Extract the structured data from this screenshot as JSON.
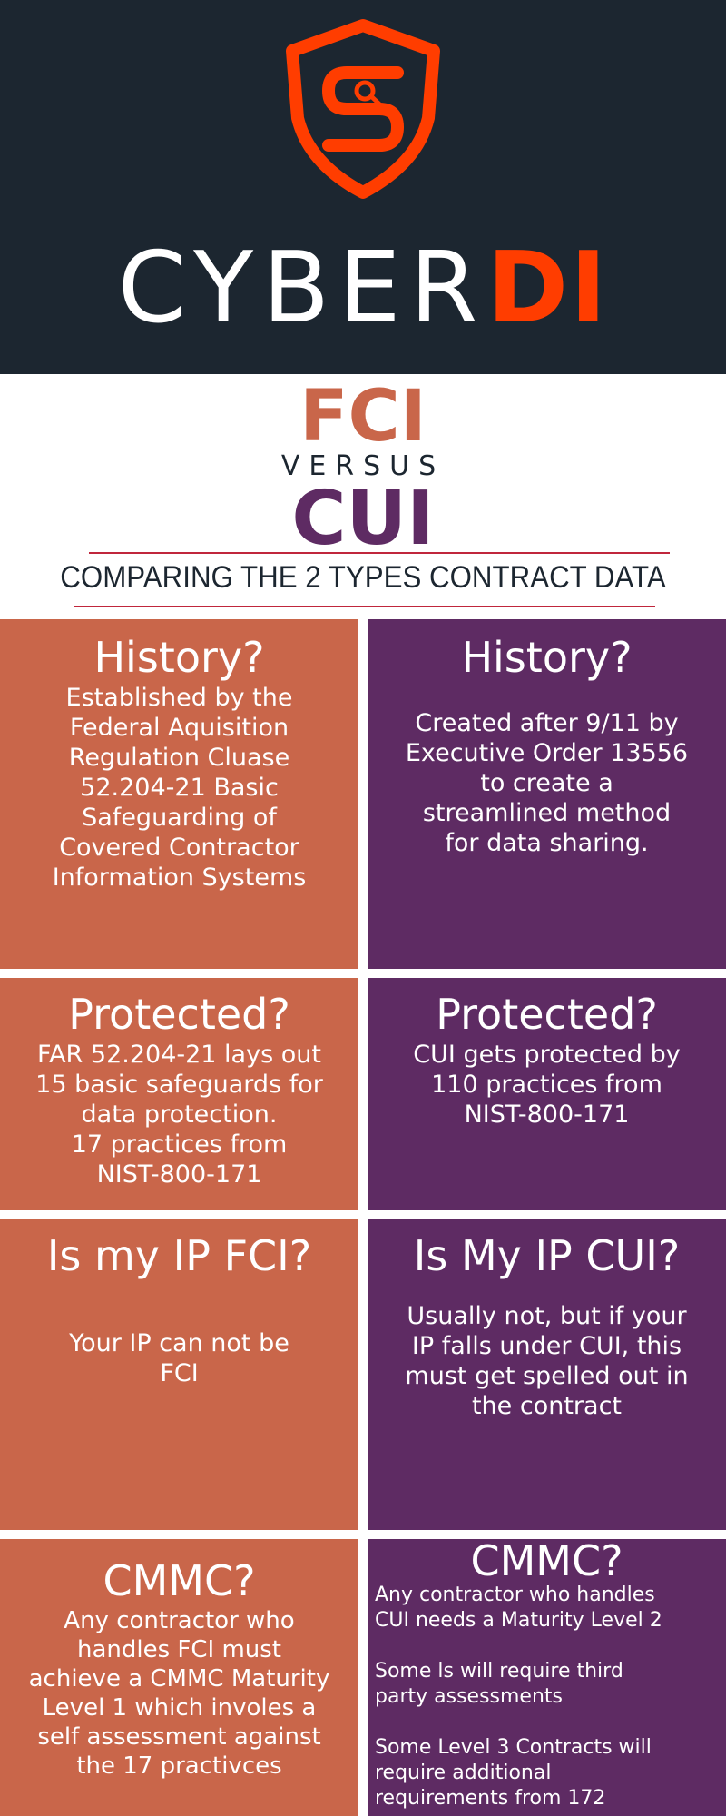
{
  "brand": {
    "light": "CYBER",
    "accent": "DI",
    "logo_icon": "shield-s-circuit-icon",
    "colors": {
      "header_bg": "#1c2630",
      "accent": "#ff3d00"
    }
  },
  "intro": {
    "fci": "FCI",
    "versus": "VERSUS",
    "cui": "CUI",
    "subtitle": "COMPARING THE 2 TYPES CONTRACT DATA"
  },
  "colors": {
    "fci": "#c9664a",
    "cui": "#5e2b63",
    "rule": "#c0263c"
  },
  "rows": [
    {
      "fci": {
        "heading": "History?",
        "body": "Established by the\nFederal Aquisition\nRegulation Cluase\n52.204-21 Basic\nSafeguarding of\nCovered Contractor\nInformation Systems"
      },
      "cui": {
        "heading": "History?",
        "body": "Created after 9/11 by\nExecutive Order 13556\nto create a\nstreamlined method\nfor data sharing."
      }
    },
    {
      "fci": {
        "heading": "Protected?",
        "body": "FAR 52.204-21  lays out\n15 basic safeguards for\ndata protection.\n17 practices from\nNIST-800-171"
      },
      "cui": {
        "heading": "Protected?",
        "body": "CUI gets protected by\n110 practices from\nNIST-800-171"
      }
    },
    {
      "fci": {
        "heading": "Is my IP FCI?",
        "body": "Your IP can not be\nFCI"
      },
      "cui": {
        "heading": "Is My IP CUI?",
        "body": "Usually not, but if your\nIP falls under CUI, this\nmust get spelled out in\nthe contract"
      }
    },
    {
      "fci": {
        "heading": "CMMC?",
        "body": "Any contractor who\nhandles FCI must\nachieve a CMMC Maturity\nLevel 1 which involes a\nself assessment against\nthe 17 practivces"
      },
      "cui": {
        "heading": "CMMC?",
        "body": "Any contractor who handles\nCUI needs a Maturity Level 2\n\nSome ls will require third\nparty assessments\n\nSome Level 3 Contracts will\nrequire additional\nrequirements from 172"
      }
    }
  ]
}
